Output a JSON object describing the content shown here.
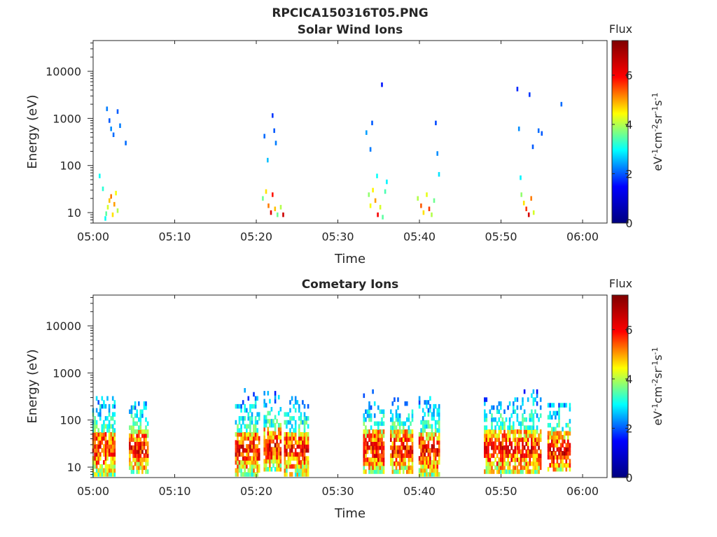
{
  "figure_title": "RPCICA150316T05.PNG",
  "colormap": {
    "name": "jet",
    "stops": [
      "#00007f",
      "#0000ff",
      "#00ffff",
      "#ffff00",
      "#ff0000",
      "#7f0000"
    ]
  },
  "chart_data": [
    {
      "type": "heatmap",
      "title": "Solar Wind Ions",
      "xlabel": "Time",
      "ylabel": "Energy (eV)",
      "yscale": "log",
      "xlim": [
        "05:00",
        "06:03"
      ],
      "ylim": [
        6,
        45000
      ],
      "x_tick_labels": [
        "05:00",
        "05:10",
        "05:20",
        "05:30",
        "05:40",
        "05:50",
        "06:00"
      ],
      "y_tick_values": [
        10,
        100,
        1000,
        10000
      ],
      "y_tick_labels": [
        "10",
        "100",
        "1000",
        "10000"
      ],
      "colorbar": {
        "label": "Flux",
        "units_base": [
          "eV",
          "cm",
          "sr",
          "s"
        ],
        "units_exp": [
          "-1",
          "-2",
          "-1",
          "-1"
        ],
        "range": [
          0,
          7.4
        ],
        "tick_values": [
          0,
          2,
          4,
          6
        ],
        "tick_labels": [
          "0",
          "2",
          "4",
          "6"
        ]
      },
      "cells": [
        [
          "05:01.5",
          7.5,
          3.0
        ],
        [
          "05:01.6",
          9.5,
          3.5
        ],
        [
          "05:01.8",
          13.0,
          4.2
        ],
        [
          "05:02.0",
          18.0,
          4.8
        ],
        [
          "05:02.2",
          22.0,
          5.2
        ],
        [
          "05:02.4",
          9.0,
          4.6
        ],
        [
          "05:02.6",
          15.0,
          5.0
        ],
        [
          "05:02.8",
          26.0,
          4.4
        ],
        [
          "05:03.0",
          11.0,
          4.0
        ],
        [
          "05:01.2",
          32.0,
          3.2
        ],
        [
          "05:00.8",
          60.0,
          3.0
        ],
        [
          "05:01.7",
          1600.0,
          2.2
        ],
        [
          "05:02.0",
          900.0,
          2.0
        ],
        [
          "05:02.2",
          600.0,
          2.3
        ],
        [
          "05:02.5",
          450.0,
          2.1
        ],
        [
          "05:03.0",
          1400.0,
          2.0
        ],
        [
          "05:03.3",
          700.0,
          2.2
        ],
        [
          "05:04.0",
          300.0,
          2.1
        ],
        [
          "05:20.8",
          20.0,
          3.6
        ],
        [
          "05:21.2",
          28.0,
          4.6
        ],
        [
          "05:21.5",
          14.0,
          5.2
        ],
        [
          "05:21.8",
          10.0,
          6.3
        ],
        [
          "05:22.0",
          24.0,
          5.8
        ],
        [
          "05:22.3",
          12.0,
          4.8
        ],
        [
          "05:22.6",
          9.0,
          3.6
        ],
        [
          "05:23.0",
          13.0,
          4.0
        ],
        [
          "05:23.3",
          9.0,
          6.5
        ],
        [
          "05:21.0",
          420.0,
          2.1
        ],
        [
          "05:21.4",
          130.0,
          2.6
        ],
        [
          "05:22.0",
          1150.0,
          1.8
        ],
        [
          "05:22.4",
          300.0,
          2.2
        ],
        [
          "05:22.2",
          550.0,
          2.0
        ],
        [
          "05:33.8",
          24.0,
          3.8
        ],
        [
          "05:34.0",
          14.0,
          4.4
        ],
        [
          "05:34.3",
          30.0,
          4.5
        ],
        [
          "05:34.6",
          18.0,
          5.0
        ],
        [
          "05:34.9",
          9.0,
          6.0
        ],
        [
          "05:35.2",
          13.0,
          4.2
        ],
        [
          "05:35.5",
          8.0,
          3.5
        ],
        [
          "05:35.8",
          28.0,
          3.4
        ],
        [
          "05:33.5",
          500.0,
          2.4
        ],
        [
          "05:34.0",
          220.0,
          2.2
        ],
        [
          "05:34.2",
          800.0,
          2.0
        ],
        [
          "05:35.4",
          5200.0,
          1.6
        ],
        [
          "05:34.8",
          60.0,
          3.0
        ],
        [
          "05:36.0",
          45.0,
          2.9
        ],
        [
          "05:39.8",
          20.0,
          4.0
        ],
        [
          "05:40.2",
          14.0,
          5.4
        ],
        [
          "05:40.5",
          10.0,
          4.6
        ],
        [
          "05:40.9",
          24.0,
          4.3
        ],
        [
          "05:41.2",
          12.0,
          5.6
        ],
        [
          "05:41.5",
          9.0,
          4.0
        ],
        [
          "05:41.8",
          18.0,
          3.6
        ],
        [
          "05:42.0",
          800.0,
          1.9
        ],
        [
          "05:42.2",
          180.0,
          2.3
        ],
        [
          "05:42.4",
          65.0,
          2.8
        ],
        [
          "05:52.5",
          24.0,
          3.8
        ],
        [
          "05:52.8",
          16.0,
          4.6
        ],
        [
          "05:53.1",
          12.0,
          5.6
        ],
        [
          "05:53.4",
          9.0,
          6.4
        ],
        [
          "05:53.7",
          20.0,
          5.2
        ],
        [
          "05:54.0",
          10.0,
          4.2
        ],
        [
          "05:52.2",
          600.0,
          2.3
        ],
        [
          "05:52.0",
          4200.0,
          1.7
        ],
        [
          "05:53.5",
          3200.0,
          1.8
        ],
        [
          "05:53.9",
          250.0,
          2.0
        ],
        [
          "05:54.6",
          550.0,
          2.1
        ],
        [
          "05:55.0",
          480.0,
          2.0
        ],
        [
          "05:57.4",
          2000.0,
          2.1
        ],
        [
          "05:52.4",
          55.0,
          2.9
        ]
      ]
    },
    {
      "type": "heatmap",
      "title": "Cometary Ions",
      "xlabel": "Time",
      "ylabel": "Energy (eV)",
      "yscale": "log",
      "xlim": [
        "05:00",
        "06:03"
      ],
      "ylim": [
        6,
        45000
      ],
      "x_tick_labels": [
        "05:00",
        "05:10",
        "05:20",
        "05:30",
        "05:40",
        "05:50",
        "06:00"
      ],
      "y_tick_values": [
        10,
        100,
        1000,
        10000
      ],
      "y_tick_labels": [
        "10",
        "100",
        "1000",
        "10000"
      ],
      "colorbar": {
        "label": "Flux",
        "units_base": [
          "eV",
          "cm",
          "sr",
          "s"
        ],
        "units_exp": [
          "-1",
          "-2",
          "-1",
          "-1"
        ],
        "range": [
          0,
          7.4
        ],
        "tick_values": [
          0,
          2,
          4,
          6
        ],
        "tick_labels": [
          "0",
          "2",
          "4",
          "6"
        ]
      },
      "clusters": [
        {
          "t0": 0.0,
          "t1": 2.8,
          "lo": 7,
          "core": 30,
          "hi": 320
        },
        {
          "t0": 4.5,
          "t1": 6.9,
          "lo": 8,
          "core": 30,
          "hi": 250
        },
        {
          "t0": 17.5,
          "t1": 20.5,
          "lo": 7,
          "core": 30,
          "hi": 450
        },
        {
          "t0": 21.0,
          "t1": 23.0,
          "lo": 9,
          "core": 35,
          "hi": 380
        },
        {
          "t0": 23.5,
          "t1": 26.5,
          "lo": 7,
          "core": 30,
          "hi": 300
        },
        {
          "t0": 33.2,
          "t1": 35.8,
          "lo": 8,
          "core": 30,
          "hi": 450
        },
        {
          "t0": 36.5,
          "t1": 39.2,
          "lo": 8,
          "core": 30,
          "hi": 280
        },
        {
          "t0": 40.0,
          "t1": 42.5,
          "lo": 7,
          "core": 28,
          "hi": 320
        },
        {
          "t0": 48.0,
          "t1": 51.8,
          "lo": 8,
          "core": 30,
          "hi": 350
        },
        {
          "t0": 52.0,
          "t1": 55.0,
          "lo": 8,
          "core": 30,
          "hi": 420
        },
        {
          "t0": 55.8,
          "t1": 58.5,
          "lo": 9,
          "core": 28,
          "hi": 220
        }
      ]
    }
  ]
}
